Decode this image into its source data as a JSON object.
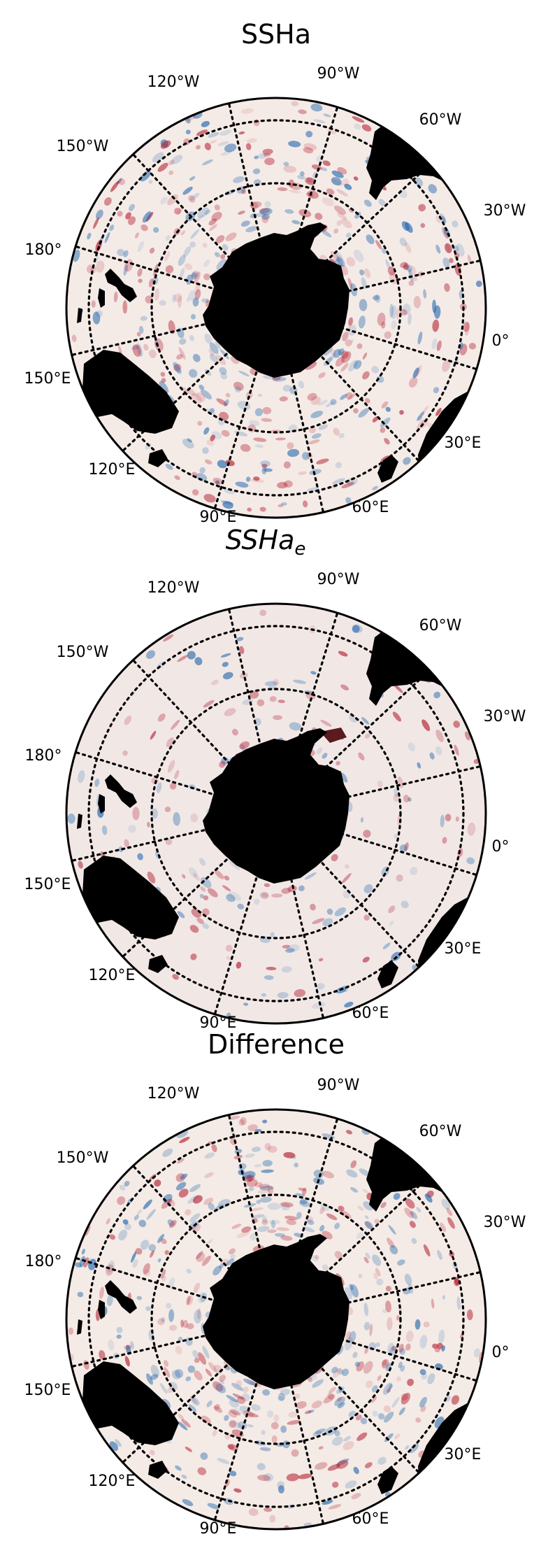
{
  "panels": [
    {
      "id": "ssha",
      "title": "SSHa",
      "title_sub": "",
      "lon_labels": [
        "120°W",
        "90°W",
        "60°W",
        "150°W",
        "30°W",
        "180°",
        "0°",
        "150°E",
        "30°E",
        "120°E",
        "90°E",
        "60°E"
      ],
      "ocean_color": "#f4ebe7",
      "show_ice_shelf": false
    },
    {
      "id": "sshae",
      "title": "SSHa",
      "title_sub": "e",
      "lon_labels": [
        "120°W",
        "90°W",
        "60°W",
        "150°W",
        "30°W",
        "180°",
        "0°",
        "150°E",
        "30°E",
        "120°E",
        "90°E",
        "60°E"
      ],
      "ocean_color": "#f1e8e6",
      "show_ice_shelf": true
    },
    {
      "id": "difference",
      "title": "Difference",
      "title_sub": "",
      "lon_labels": [
        "120°W",
        "90°W",
        "60°W",
        "150°W",
        "30°W",
        "180°",
        "0°",
        "150°E",
        "30°E",
        "120°E",
        "90°E",
        "60°E"
      ],
      "ocean_color": "#f4ebe6",
      "show_ice_shelf": false
    }
  ],
  "colors": {
    "land": "#000000",
    "positive_anomaly": "#b2182b",
    "negative_anomaly": "#2166ac",
    "ice_shelf": "#5a1a1e",
    "graticule": "#000000"
  }
}
